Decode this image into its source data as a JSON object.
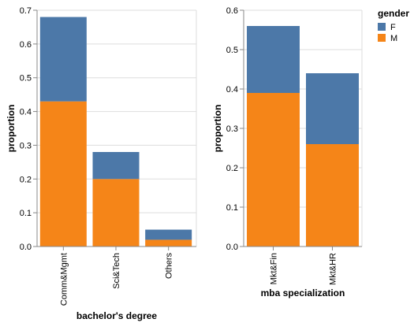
{
  "chart_data": [
    {
      "type": "bar",
      "stacked": true,
      "categories": [
        "Comm&Mgmt",
        "Sci&Tech",
        "Others"
      ],
      "series": [
        {
          "name": "M",
          "values": [
            0.43,
            0.2,
            0.02
          ]
        },
        {
          "name": "F",
          "values": [
            0.25,
            0.08,
            0.03
          ]
        }
      ],
      "xlabel": "bachelor's degree",
      "ylabel": "proportion",
      "ylim": [
        0,
        0.7
      ],
      "yticks": [
        "0.0",
        "0.1",
        "0.2",
        "0.3",
        "0.4",
        "0.5",
        "0.6",
        "0.7"
      ],
      "grid": true
    },
    {
      "type": "bar",
      "stacked": true,
      "categories": [
        "Mkt&Fin",
        "Mkt&HR"
      ],
      "series": [
        {
          "name": "M",
          "values": [
            0.39,
            0.26
          ]
        },
        {
          "name": "F",
          "values": [
            0.17,
            0.18
          ]
        }
      ],
      "xlabel": "mba specialization",
      "ylabel": "proportion",
      "ylim": [
        0,
        0.6
      ],
      "yticks": [
        "0.0",
        "0.1",
        "0.2",
        "0.3",
        "0.4",
        "0.5",
        "0.6"
      ],
      "grid": true
    }
  ],
  "legend": {
    "title": "gender",
    "placement": "top-right",
    "items": [
      {
        "label": "F",
        "color": "#4c78a8"
      },
      {
        "label": "M",
        "color": "#f58518"
      }
    ]
  },
  "colors": {
    "F": "#4c78a8",
    "M": "#f58518",
    "grid": "#dddddd",
    "axis": "#888888"
  }
}
